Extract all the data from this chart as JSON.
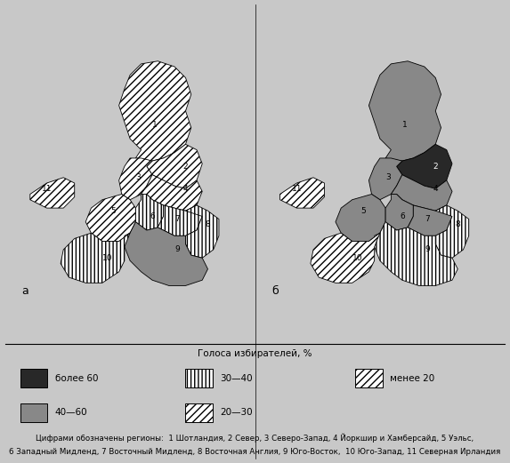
{
  "title_legend": "Голоса избирателей, %",
  "footnote_line1": "Цифрами обозначены регионы:  1 Шотландия, 2 Север, 3 Северо-Запад, 4 Йоркшир и Хамберсайд, 5 Уэльс,",
  "footnote_line2": "6 Западный Мидленд, 7 Восточный Мидленд, 8 Восточная Англия, 9 Юго-Восток,  10 Юго-Запад, 11 Северная Ирландия",
  "label_a": "а",
  "label_b": "б",
  "color_dark": "#282828",
  "color_grey": "#888888",
  "color_light_grey": "#c0c0c0",
  "color_white": "#ffffff",
  "bg_color": "#c8c8c8",
  "map_bg": "#c8c8c8",
  "border_color": "#000000",
  "regions_a": {
    "1": {
      "fc": "white",
      "hatch": "////",
      "lpos": [
        0.49,
        0.77
      ],
      "lc": "black"
    },
    "11": {
      "fc": "white",
      "hatch": "////",
      "lpos": [
        0.1,
        0.54
      ],
      "lc": "black"
    },
    "2": {
      "fc": "white",
      "hatch": "////",
      "lpos": [
        0.6,
        0.62
      ],
      "lc": "black"
    },
    "3": {
      "fc": "white",
      "hatch": "////",
      "lpos": [
        0.43,
        0.58
      ],
      "lc": "black"
    },
    "4": {
      "fc": "white",
      "hatch": "////",
      "lpos": [
        0.6,
        0.54
      ],
      "lc": "black"
    },
    "5": {
      "fc": "white",
      "hatch": "////",
      "lpos": [
        0.34,
        0.46
      ],
      "lc": "black"
    },
    "6": {
      "fc": "white",
      "hatch": "||||",
      "lpos": [
        0.48,
        0.44
      ],
      "lc": "black"
    },
    "7": {
      "fc": "white",
      "hatch": "||||",
      "lpos": [
        0.57,
        0.43
      ],
      "lc": "black"
    },
    "8": {
      "fc": "white",
      "hatch": "||||",
      "lpos": [
        0.68,
        0.41
      ],
      "lc": "black"
    },
    "9": {
      "fc": "#888888",
      "hatch": null,
      "lpos": [
        0.57,
        0.32
      ],
      "lc": "black"
    },
    "10": {
      "fc": "white",
      "hatch": "||||",
      "lpos": [
        0.32,
        0.29
      ],
      "lc": "black"
    }
  },
  "regions_b": {
    "1": {
      "fc": "#888888",
      "hatch": null,
      "lpos": [
        0.49,
        0.77
      ],
      "lc": "black"
    },
    "11": {
      "fc": "white",
      "hatch": "////",
      "lpos": [
        0.1,
        0.54
      ],
      "lc": "black"
    },
    "2": {
      "fc": "#282828",
      "hatch": null,
      "lpos": [
        0.6,
        0.62
      ],
      "lc": "white"
    },
    "3": {
      "fc": "#888888",
      "hatch": null,
      "lpos": [
        0.43,
        0.58
      ],
      "lc": "black"
    },
    "4": {
      "fc": "#888888",
      "hatch": null,
      "lpos": [
        0.6,
        0.54
      ],
      "lc": "black"
    },
    "5": {
      "fc": "#888888",
      "hatch": null,
      "lpos": [
        0.34,
        0.46
      ],
      "lc": "black"
    },
    "6": {
      "fc": "#888888",
      "hatch": null,
      "lpos": [
        0.48,
        0.44
      ],
      "lc": "black"
    },
    "7": {
      "fc": "#888888",
      "hatch": null,
      "lpos": [
        0.57,
        0.43
      ],
      "lc": "black"
    },
    "8": {
      "fc": "white",
      "hatch": "||||",
      "lpos": [
        0.68,
        0.41
      ],
      "lc": "black"
    },
    "9": {
      "fc": "white",
      "hatch": "||||",
      "lpos": [
        0.57,
        0.32
      ],
      "lc": "black"
    },
    "10": {
      "fc": "white",
      "hatch": "////",
      "lpos": [
        0.32,
        0.29
      ],
      "lc": "black"
    }
  }
}
